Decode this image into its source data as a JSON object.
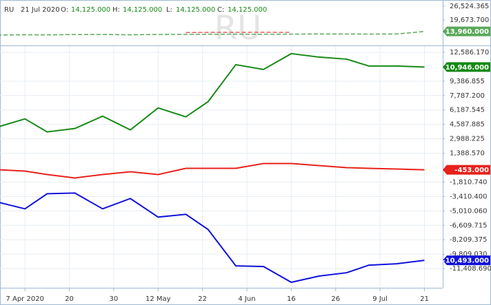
{
  "header": {
    "symbol": "RU",
    "date": "21 Jul 2020",
    "fields": [
      {
        "label": "O:",
        "value": "14,125.000"
      },
      {
        "label": "H:",
        "value": "14,125.000"
      },
      {
        "label": "L:",
        "value": "14,125.000"
      },
      {
        "label": "C:",
        "value": "14,125.000"
      }
    ]
  },
  "chart_data": [
    {
      "type": "line",
      "x": [
        -5,
        0,
        4,
        9,
        14,
        19,
        24,
        29,
        33,
        38,
        43,
        48,
        53,
        58,
        62,
        67,
        72
      ],
      "xlim": [
        -4.5,
        75.3
      ],
      "ylim": [
        7000,
        29600
      ],
      "yticks": [
        {
          "value": 26524.365,
          "label": "26,524.365"
        },
        {
          "value": 19673.7,
          "label": "19,673.700"
        }
      ],
      "series": [
        {
          "color": "#5aa85a",
          "dashed": true,
          "values": [
            12150,
            12300,
            12250,
            12450,
            12450,
            12300,
            12450,
            12500,
            12550,
            12600,
            12550,
            12600,
            12700,
            12700,
            12650,
            12700,
            13960
          ],
          "last_value_label": "13,960.000"
        },
        {
          "color": "#e85a5a",
          "dashed": true,
          "values": [
            null,
            null,
            null,
            null,
            null,
            null,
            null,
            13400,
            13500,
            13500,
            13550,
            13500,
            null,
            null,
            null,
            null,
            null
          ]
        }
      ]
    },
    {
      "type": "line",
      "x": [
        -5,
        0,
        4,
        9,
        14,
        19,
        24,
        29,
        33,
        38,
        43,
        48,
        53,
        58,
        62,
        67,
        72
      ],
      "xlim": [
        -4.5,
        75.3
      ],
      "ylim": [
        -13540,
        13270
      ],
      "xticks": [
        {
          "value": 0,
          "label": "7 Apr 2020"
        },
        {
          "value": 8,
          "label": "20"
        },
        {
          "value": 16,
          "label": "30"
        },
        {
          "value": 24,
          "label": "12 May"
        },
        {
          "value": 32,
          "label": "22"
        },
        {
          "value": 40,
          "label": "4 Jun"
        },
        {
          "value": 48,
          "label": "16"
        },
        {
          "value": 56,
          "label": "26"
        },
        {
          "value": 64,
          "label": "9 Jul"
        },
        {
          "value": 72,
          "label": "21"
        }
      ],
      "yticks": [
        {
          "value": 12586.17,
          "label": "12,586.170"
        },
        {
          "value": 9386.855,
          "label": "9,386.855"
        },
        {
          "value": 7787.2,
          "label": "7,787.200"
        },
        {
          "value": 6187.545,
          "label": "6,187.545"
        },
        {
          "value": 4587.885,
          "label": "4,587.885"
        },
        {
          "value": 2988.225,
          "label": "2,988.225"
        },
        {
          "value": 1388.57,
          "label": "1,388.570"
        },
        {
          "value": -1810.74,
          "label": "-1,810.740"
        },
        {
          "value": -3410.4,
          "label": "-3,410.400"
        },
        {
          "value": -5010.06,
          "label": "-5,010.060"
        },
        {
          "value": -6609.715,
          "label": "-6,609.715"
        },
        {
          "value": -8209.375,
          "label": "-8,209.375"
        },
        {
          "value": -9809.03,
          "label": "-9,809.030"
        },
        {
          "value": -11408.69,
          "label": "-11,408.690"
        }
      ],
      "grid": true,
      "series": [
        {
          "color": "#168a16",
          "values": [
            4283,
            5198,
            3750,
            4131,
            5502,
            3979,
            6416,
            5426,
            7102,
            11215,
            10682,
            12434,
            12053,
            11824,
            11063,
            11063,
            10946
          ],
          "last_value_label": "10,946.000"
        },
        {
          "color": "#e8211b",
          "values": [
            -439,
            -591,
            -972,
            -1353,
            -972,
            -668,
            -972,
            -287,
            -287,
            -287,
            246,
            246,
            18,
            -211,
            -287,
            -363,
            -453
          ],
          "last_value_label": "-453.000"
        },
        {
          "color": "#1111dd",
          "values": [
            -4019,
            -4781,
            -3105,
            -3029,
            -4781,
            -3638,
            -5695,
            -5390,
            -7066,
            -11103,
            -11179,
            -12931,
            -12245,
            -11865,
            -11027,
            -10874,
            -10493
          ],
          "last_value_label": "-10,493.000"
        }
      ]
    }
  ]
}
